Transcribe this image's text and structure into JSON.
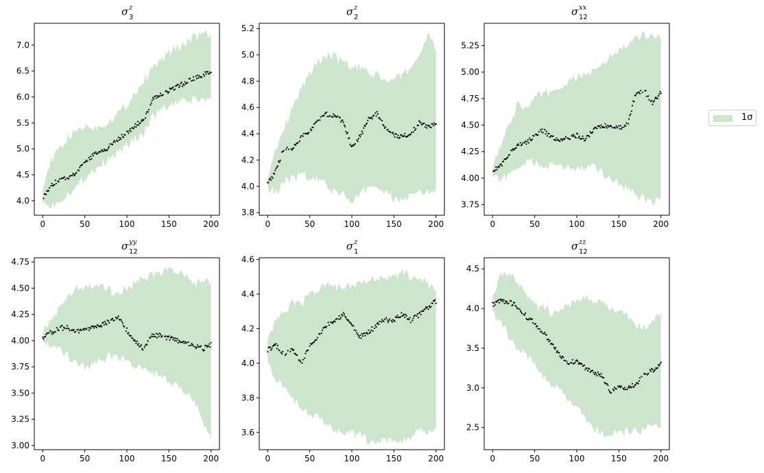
{
  "legend": {
    "label": "1σ",
    "position": "right-center",
    "fill_color": "#cde5cd"
  },
  "colors": {
    "band": "#cde5cd",
    "points": "#000000",
    "axes": "#000000"
  },
  "chart_data": [
    {
      "type": "scatter",
      "title_symbol": "σ",
      "title_sub": "3",
      "title_sup": "z",
      "xlim": [
        -10,
        210
      ],
      "ylim": [
        3.72,
        7.42
      ],
      "xticks": [
        0,
        50,
        100,
        150,
        200
      ],
      "yticks": [
        4.0,
        4.5,
        5.0,
        5.5,
        6.0,
        6.5,
        7.0
      ],
      "ytick_labels": [
        "4.0",
        "4.5",
        "5.0",
        "5.5",
        "6.0",
        "6.5",
        "7.0"
      ],
      "series": [
        {
          "kind": "points",
          "x": [
            0,
            10,
            20,
            30,
            40,
            50,
            60,
            70,
            80,
            90,
            100,
            110,
            120,
            130,
            140,
            150,
            160,
            170,
            180,
            190,
            200
          ],
          "y": [
            4.05,
            4.3,
            4.42,
            4.45,
            4.55,
            4.72,
            4.88,
            4.95,
            5.05,
            5.2,
            5.3,
            5.45,
            5.55,
            5.95,
            6.05,
            6.12,
            6.2,
            6.28,
            6.35,
            6.42,
            6.48
          ]
        },
        {
          "kind": "band",
          "x": [
            0,
            10,
            20,
            30,
            40,
            50,
            60,
            70,
            80,
            90,
            100,
            110,
            120,
            130,
            140,
            150,
            160,
            170,
            180,
            190,
            200
          ],
          "lower": [
            3.95,
            3.9,
            4.0,
            4.15,
            4.25,
            4.45,
            4.6,
            4.7,
            4.8,
            4.95,
            5.05,
            5.2,
            5.3,
            5.6,
            5.75,
            5.82,
            5.88,
            5.92,
            5.95,
            5.95,
            5.95
          ],
          "upper": [
            4.3,
            4.75,
            5.0,
            5.2,
            5.35,
            5.45,
            5.4,
            5.45,
            5.55,
            5.7,
            5.85,
            6.1,
            6.3,
            6.55,
            6.7,
            6.85,
            6.95,
            7.05,
            7.15,
            7.22,
            7.2
          ]
        }
      ]
    },
    {
      "type": "scatter",
      "title_symbol": "σ",
      "title_sub": "2",
      "title_sup": "z",
      "xlim": [
        -10,
        210
      ],
      "ylim": [
        3.78,
        5.24
      ],
      "xticks": [
        0,
        50,
        100,
        150,
        200
      ],
      "yticks": [
        3.8,
        4.0,
        4.2,
        4.4,
        4.6,
        4.8,
        5.0,
        5.2
      ],
      "ytick_labels": [
        "3.8",
        "4.0",
        "4.2",
        "4.4",
        "4.6",
        "4.8",
        "5.0",
        "5.2"
      ],
      "series": [
        {
          "kind": "points",
          "x": [
            0,
            10,
            20,
            30,
            40,
            50,
            60,
            70,
            80,
            90,
            100,
            110,
            120,
            130,
            140,
            150,
            160,
            170,
            180,
            190,
            200
          ],
          "y": [
            4.02,
            4.12,
            4.3,
            4.28,
            4.38,
            4.42,
            4.5,
            4.55,
            4.54,
            4.48,
            4.3,
            4.38,
            4.52,
            4.55,
            4.44,
            4.39,
            4.38,
            4.4,
            4.48,
            4.46,
            4.47
          ]
        },
        {
          "kind": "band",
          "x": [
            0,
            10,
            20,
            30,
            40,
            50,
            60,
            70,
            80,
            90,
            100,
            110,
            120,
            130,
            140,
            150,
            160,
            170,
            180,
            190,
            200
          ],
          "lower": [
            3.98,
            3.95,
            4.05,
            4.05,
            4.1,
            4.05,
            4.05,
            4.0,
            3.95,
            3.95,
            3.85,
            3.95,
            4.0,
            4.0,
            3.95,
            3.9,
            3.9,
            3.92,
            3.95,
            3.95,
            3.97
          ],
          "upper": [
            4.08,
            4.3,
            4.45,
            4.6,
            4.75,
            4.85,
            4.95,
            5.0,
            4.98,
            4.95,
            4.9,
            4.9,
            4.85,
            4.85,
            4.8,
            4.8,
            4.85,
            4.9,
            5.0,
            5.15,
            5.05
          ]
        }
      ]
    },
    {
      "type": "scatter",
      "title_symbol": "σ",
      "title_sub": "12",
      "title_sup": "xx",
      "xlim": [
        -10,
        210
      ],
      "ylim": [
        3.65,
        5.46
      ],
      "xticks": [
        0,
        50,
        100,
        150,
        200
      ],
      "yticks": [
        3.75,
        4.0,
        4.25,
        4.5,
        4.75,
        5.0,
        5.25
      ],
      "ytick_labels": [
        "3.75",
        "4.00",
        "4.25",
        "4.50",
        "4.75",
        "5.00",
        "5.25"
      ],
      "series": [
        {
          "kind": "points",
          "x": [
            0,
            10,
            20,
            30,
            40,
            50,
            60,
            70,
            80,
            90,
            100,
            110,
            120,
            130,
            140,
            150,
            160,
            170,
            180,
            190,
            200
          ],
          "y": [
            4.07,
            4.12,
            4.22,
            4.32,
            4.33,
            4.4,
            4.45,
            4.38,
            4.35,
            4.38,
            4.4,
            4.37,
            4.45,
            4.5,
            4.48,
            4.47,
            4.5,
            4.8,
            4.83,
            4.7,
            4.82
          ]
        },
        {
          "kind": "band",
          "x": [
            0,
            10,
            20,
            30,
            40,
            50,
            60,
            70,
            80,
            90,
            100,
            110,
            120,
            130,
            140,
            150,
            160,
            170,
            180,
            190,
            200
          ],
          "lower": [
            4.0,
            3.98,
            4.05,
            4.1,
            4.15,
            4.15,
            4.1,
            4.12,
            4.1,
            4.1,
            4.08,
            4.1,
            4.1,
            4.05,
            4.0,
            3.95,
            3.9,
            3.85,
            3.8,
            3.78,
            3.8
          ],
          "upper": [
            4.1,
            4.3,
            4.5,
            4.7,
            4.65,
            4.75,
            4.8,
            4.82,
            4.85,
            4.9,
            4.95,
            4.98,
            5.0,
            5.05,
            5.15,
            5.2,
            5.25,
            5.3,
            5.35,
            5.35,
            5.32
          ]
        }
      ]
    },
    {
      "type": "scatter",
      "title_symbol": "σ",
      "title_sub": "12",
      "title_sup": "yy",
      "xlim": [
        -10,
        210
      ],
      "ylim": [
        2.96,
        4.79
      ],
      "xticks": [
        0,
        50,
        100,
        150,
        200
      ],
      "yticks": [
        3.0,
        3.25,
        3.5,
        3.75,
        4.0,
        4.25,
        4.5,
        4.75
      ],
      "ytick_labels": [
        "3.00",
        "3.25",
        "3.50",
        "3.75",
        "4.00",
        "4.25",
        "4.50",
        "4.75"
      ],
      "series": [
        {
          "kind": "points",
          "x": [
            0,
            10,
            20,
            30,
            40,
            50,
            60,
            70,
            80,
            90,
            100,
            110,
            120,
            130,
            140,
            150,
            160,
            170,
            180,
            190,
            200
          ],
          "y": [
            4.02,
            4.08,
            4.12,
            4.12,
            4.08,
            4.1,
            4.12,
            4.15,
            4.18,
            4.22,
            4.1,
            4.0,
            3.92,
            4.05,
            4.05,
            4.02,
            4.0,
            3.98,
            3.95,
            3.92,
            3.96
          ]
        },
        {
          "kind": "band",
          "x": [
            0,
            10,
            20,
            30,
            40,
            50,
            60,
            70,
            80,
            90,
            100,
            110,
            120,
            130,
            140,
            150,
            160,
            170,
            180,
            190,
            200
          ],
          "lower": [
            3.97,
            3.95,
            3.9,
            3.85,
            3.8,
            3.75,
            3.78,
            3.82,
            3.85,
            3.85,
            3.8,
            3.75,
            3.72,
            3.7,
            3.65,
            3.6,
            3.55,
            3.5,
            3.45,
            3.25,
            3.05
          ],
          "upper": [
            4.08,
            4.2,
            4.3,
            4.4,
            4.5,
            4.5,
            4.52,
            4.5,
            4.48,
            4.45,
            4.5,
            4.55,
            4.6,
            4.62,
            4.65,
            4.68,
            4.65,
            4.6,
            4.55,
            4.55,
            4.55
          ]
        }
      ]
    },
    {
      "type": "scatter",
      "title_symbol": "σ",
      "title_sub": "1",
      "title_sup": "z",
      "xlim": [
        -10,
        210
      ],
      "ylim": [
        3.5,
        4.61
      ],
      "xticks": [
        0,
        50,
        100,
        150,
        200
      ],
      "yticks": [
        3.6,
        3.8,
        4.0,
        4.2,
        4.4,
        4.6
      ],
      "ytick_labels": [
        "3.6",
        "3.8",
        "4.0",
        "4.2",
        "4.4",
        "4.6"
      ],
      "series": [
        {
          "kind": "points",
          "x": [
            0,
            10,
            20,
            30,
            40,
            50,
            60,
            70,
            80,
            90,
            100,
            110,
            120,
            130,
            140,
            150,
            160,
            170,
            180,
            190,
            200
          ],
          "y": [
            4.08,
            4.1,
            4.05,
            4.08,
            4.0,
            4.1,
            4.15,
            4.22,
            4.25,
            4.28,
            4.22,
            4.15,
            4.18,
            4.22,
            4.25,
            4.25,
            4.28,
            4.25,
            4.28,
            4.32,
            4.36
          ]
        },
        {
          "kind": "band",
          "x": [
            0,
            10,
            20,
            30,
            40,
            50,
            60,
            70,
            80,
            90,
            100,
            110,
            120,
            130,
            140,
            150,
            160,
            170,
            180,
            190,
            200
          ],
          "lower": [
            4.0,
            3.9,
            3.85,
            3.8,
            3.72,
            3.7,
            3.68,
            3.65,
            3.62,
            3.6,
            3.6,
            3.58,
            3.55,
            3.55,
            3.55,
            3.55,
            3.55,
            3.58,
            3.6,
            3.6,
            3.62
          ],
          "upper": [
            4.15,
            4.25,
            4.3,
            4.35,
            4.35,
            4.4,
            4.42,
            4.45,
            4.45,
            4.42,
            4.45,
            4.45,
            4.48,
            4.5,
            4.5,
            4.5,
            4.52,
            4.5,
            4.5,
            4.45,
            4.42
          ]
        }
      ]
    },
    {
      "type": "scatter",
      "title_symbol": "σ",
      "title_sub": "12",
      "title_sup": "zz",
      "xlim": [
        -10,
        210
      ],
      "ylim": [
        2.22,
        4.64
      ],
      "xticks": [
        0,
        50,
        100,
        150,
        200
      ],
      "yticks": [
        2.5,
        3.0,
        3.5,
        4.0,
        4.5
      ],
      "ytick_labels": [
        "2.5",
        "3.0",
        "3.5",
        "4.0",
        "4.5"
      ],
      "series": [
        {
          "kind": "points",
          "x": [
            0,
            10,
            20,
            30,
            40,
            50,
            60,
            70,
            80,
            90,
            100,
            110,
            120,
            130,
            140,
            150,
            160,
            170,
            180,
            190,
            200
          ],
          "y": [
            4.05,
            4.1,
            4.08,
            4.02,
            3.9,
            3.82,
            3.7,
            3.55,
            3.4,
            3.3,
            3.35,
            3.25,
            3.2,
            3.15,
            2.95,
            3.0,
            3.0,
            3.05,
            3.15,
            3.22,
            3.32
          ]
        },
        {
          "kind": "band",
          "x": [
            0,
            10,
            20,
            30,
            40,
            50,
            60,
            70,
            80,
            90,
            100,
            110,
            120,
            130,
            140,
            150,
            160,
            170,
            180,
            190,
            200
          ],
          "lower": [
            3.95,
            3.8,
            3.65,
            3.5,
            3.4,
            3.3,
            3.15,
            3.05,
            2.95,
            2.85,
            2.75,
            2.6,
            2.5,
            2.42,
            2.4,
            2.42,
            2.45,
            2.45,
            2.48,
            2.5,
            2.52
          ],
          "upper": [
            4.15,
            4.4,
            4.45,
            4.35,
            4.2,
            4.05,
            4.0,
            3.95,
            4.0,
            4.02,
            4.1,
            4.15,
            4.1,
            4.05,
            4.0,
            3.95,
            3.9,
            3.8,
            3.75,
            3.85,
            3.9
          ]
        }
      ]
    }
  ]
}
